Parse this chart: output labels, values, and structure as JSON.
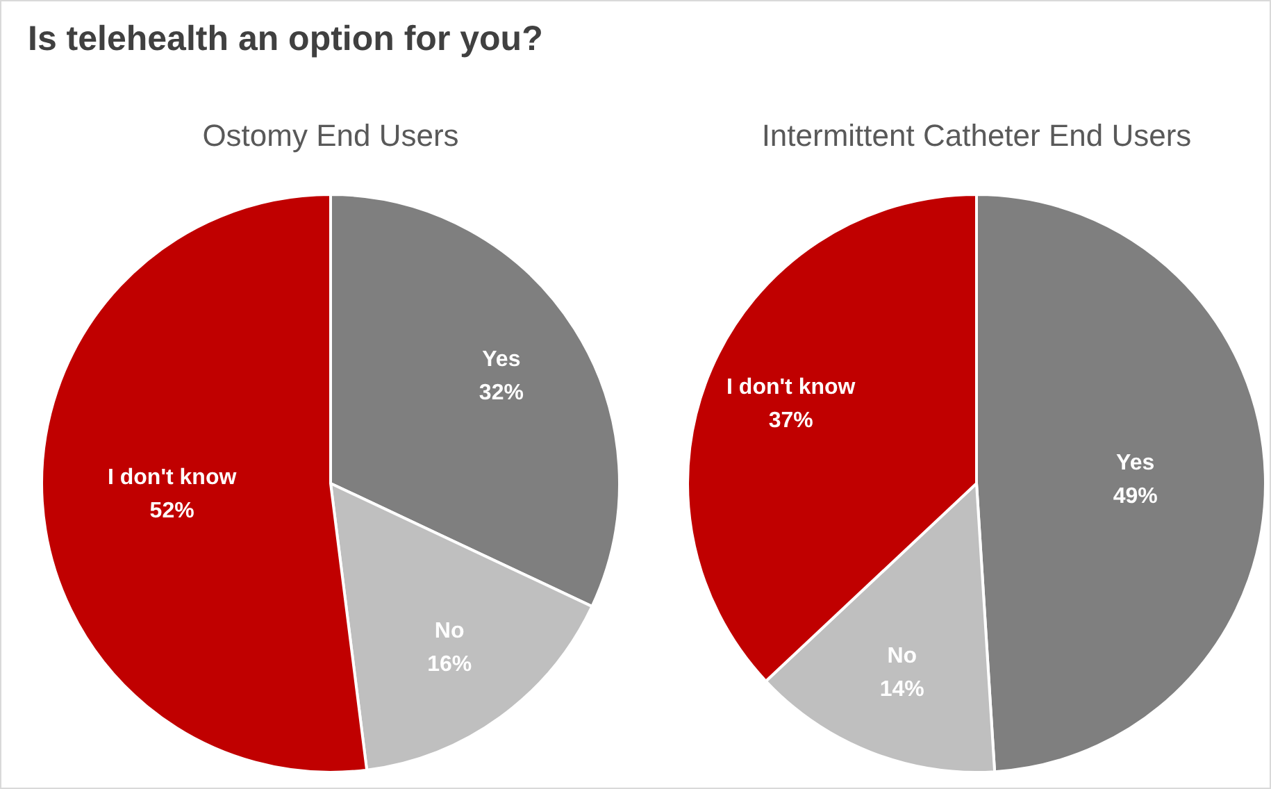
{
  "chart_data": [
    {
      "type": "other",
      "title": "Is telehealth an option for you?"
    },
    {
      "type": "pie",
      "title": "Ostomy End Users",
      "categories": [
        "Yes",
        "No",
        "I don't know"
      ],
      "values": [
        32,
        16,
        52
      ],
      "value_labels": [
        "32%",
        "16%",
        "52%"
      ],
      "colors": [
        "#7f7f7f",
        "#bfbfbf",
        "#c00000"
      ],
      "legend": false
    },
    {
      "type": "pie",
      "title": "Intermittent Catheter End Users",
      "categories": [
        "Yes",
        "No",
        "I don't know"
      ],
      "values": [
        49,
        14,
        37
      ],
      "value_labels": [
        "49%",
        "14%",
        "37%"
      ],
      "colors": [
        "#7f7f7f",
        "#bfbfbf",
        "#c00000"
      ],
      "legend": false
    }
  ]
}
